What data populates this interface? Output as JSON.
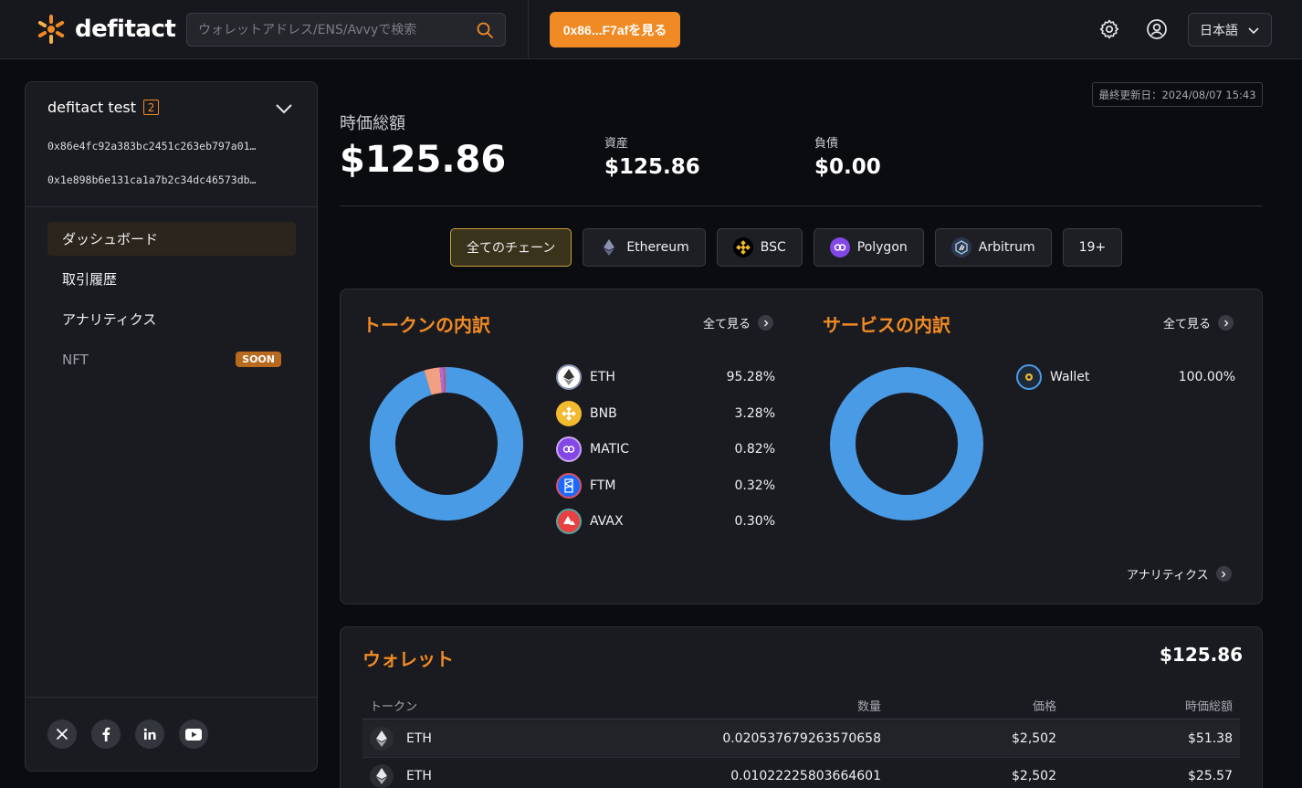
{
  "header": {
    "logo_text": "defitact",
    "search_placeholder": "ウォレットアドレス/ENS/Avvyで検索",
    "view_button": "0x86...F7afを見る",
    "language": "日本語"
  },
  "sidebar": {
    "portfolio_name": "defitact test",
    "wallet_count": "2",
    "addresses": [
      "0x86e4fc92a383bc2451c263eb797a01…",
      "0x1e898b6e131ca1a7b2c34dc46573db…"
    ],
    "nav": [
      {
        "label": "ダッシュボード"
      },
      {
        "label": "取引履歴"
      },
      {
        "label": "アナリティクス"
      },
      {
        "label": "NFT",
        "badge": "SOON"
      }
    ]
  },
  "summary": {
    "last_updated": "最終更新日：2024/08/07 15:43",
    "total_label": "時価総額",
    "total_value": "$125.86",
    "assets_label": "資産",
    "assets_value": "$125.86",
    "liabilities_label": "負債",
    "liabilities_value": "$0.00"
  },
  "chains": [
    {
      "label": "全てのチェーン"
    },
    {
      "label": "Ethereum"
    },
    {
      "label": "BSC"
    },
    {
      "label": "Polygon"
    },
    {
      "label": "Arbitrum"
    },
    {
      "label": "19+"
    }
  ],
  "tokens_panel": {
    "title": "トークンの内訳",
    "see_all": "全て見る",
    "items": [
      {
        "symbol": "ETH",
        "pct": "95.28%",
        "value": 95.28,
        "color": "#4a9be6"
      },
      {
        "symbol": "BNB",
        "pct": "3.28%",
        "value": 3.28,
        "color": "#f3a082"
      },
      {
        "symbol": "MATIC",
        "pct": "0.82%",
        "value": 0.82,
        "color": "#b06ad6"
      },
      {
        "symbol": "FTM",
        "pct": "0.32%",
        "value": 0.32,
        "color": "#e05060"
      },
      {
        "symbol": "AVAX",
        "pct": "0.30%",
        "value": 0.3,
        "color": "#5c8fe0"
      }
    ]
  },
  "services_panel": {
    "title": "サービスの内訳",
    "see_all": "全て見る",
    "items": [
      {
        "name": "Wallet",
        "pct": "100.00%",
        "value": 100,
        "color": "#4a9be6"
      }
    ],
    "analytics_link": "アナリティクス"
  },
  "wallet": {
    "title": "ウォレット",
    "total": "$125.86",
    "columns": [
      "トークン",
      "数量",
      "価格",
      "時価総額"
    ],
    "rows": [
      {
        "token": "ETH",
        "amount": "0.020537679263570658",
        "price": "$2,502",
        "value": "$51.38"
      },
      {
        "token": "ETH",
        "amount": "0.01022225803664601",
        "price": "$2,502",
        "value": "$25.57"
      }
    ]
  },
  "colors": {
    "accent": "#f08a24",
    "background": "#0b0c10",
    "panel": "#1a1b20"
  }
}
